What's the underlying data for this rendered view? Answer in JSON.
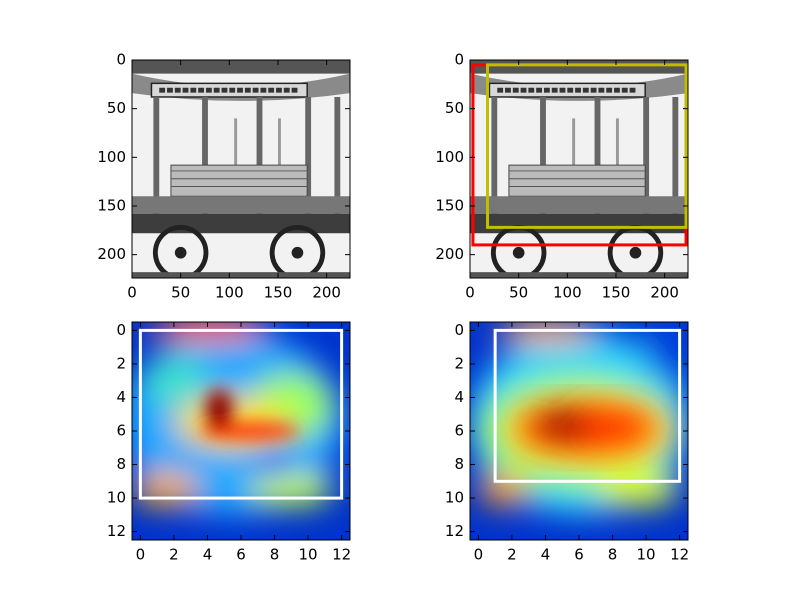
{
  "chart_data": [
    {
      "type": "image",
      "xlim": [
        0,
        224
      ],
      "ylim": [
        224,
        0
      ],
      "xticks": [
        0,
        50,
        100,
        150,
        200
      ],
      "yticks": [
        0,
        50,
        100,
        150,
        200
      ],
      "boxes": []
    },
    {
      "type": "image",
      "xlim": [
        0,
        224
      ],
      "ylim": [
        224,
        0
      ],
      "xticks": [
        0,
        50,
        100,
        150,
        200
      ],
      "yticks": [
        0,
        50,
        100,
        150,
        200
      ],
      "boxes": [
        {
          "color": "#ff0000",
          "x0": 3,
          "y0": 5,
          "x1": 222,
          "y1": 190
        },
        {
          "color": "#bfbf00",
          "x0": 18,
          "y0": 5,
          "x1": 222,
          "y1": 172
        }
      ]
    },
    {
      "type": "heatmap",
      "xlim": [
        -0.5,
        12.5
      ],
      "ylim": [
        12.5,
        -0.5
      ],
      "xticks": [
        0,
        2,
        4,
        6,
        8,
        10,
        12
      ],
      "yticks": [
        0,
        2,
        4,
        6,
        8,
        10,
        12
      ],
      "boxes": [
        {
          "color": "#ffffff",
          "x0": 0,
          "y0": 0,
          "x1": 12,
          "y1": 10
        }
      ]
    },
    {
      "type": "heatmap",
      "xlim": [
        -0.5,
        12.5
      ],
      "ylim": [
        12.5,
        -0.5
      ],
      "xticks": [
        0,
        2,
        4,
        6,
        8,
        10,
        12
      ],
      "yticks": [
        0,
        2,
        4,
        6,
        8,
        10,
        12
      ],
      "boxes": [
        {
          "color": "#ffffff",
          "x0": 1,
          "y0": 0,
          "x1": 12,
          "y1": 9
        }
      ]
    }
  ]
}
